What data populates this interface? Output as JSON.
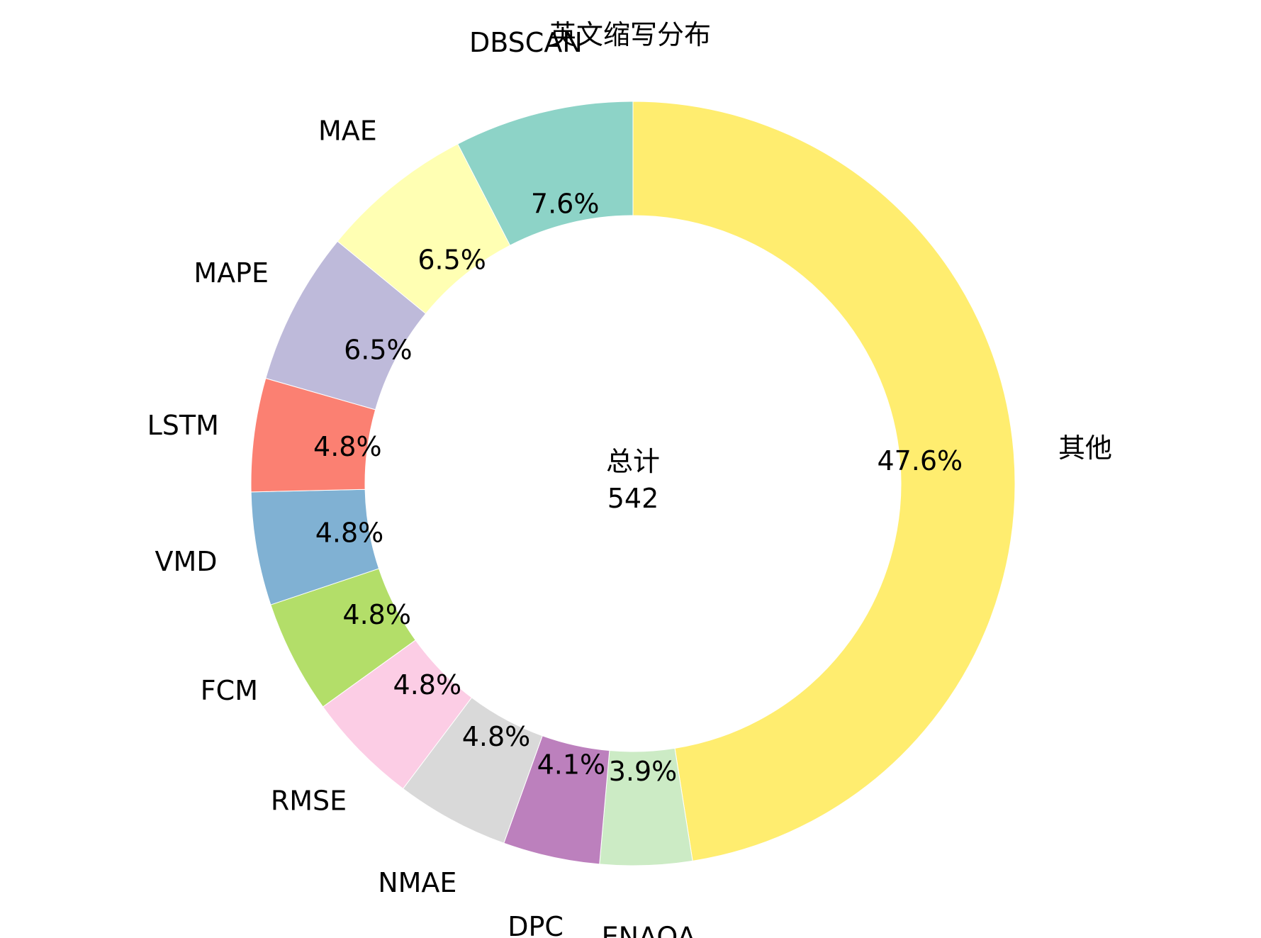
{
  "chart_data": {
    "type": "pie",
    "variant": "donut",
    "title": "英文缩写分布",
    "center_label": "总计",
    "center_value": "542",
    "start_angle": "top (12 o'clock)",
    "direction": "clockwise",
    "slices": [
      {
        "label": "其他",
        "percent": 47.6,
        "percent_text": "47.6%",
        "color": "#ffed6f"
      },
      {
        "label": "ENAOA",
        "percent": 3.9,
        "percent_text": "3.9%",
        "color": "#ccebc5"
      },
      {
        "label": "DPC",
        "percent": 4.1,
        "percent_text": "4.1%",
        "color": "#bc80bd"
      },
      {
        "label": "NMAE",
        "percent": 4.8,
        "percent_text": "4.8%",
        "color": "#d9d9d9"
      },
      {
        "label": "RMSE",
        "percent": 4.8,
        "percent_text": "4.8%",
        "color": "#fccde5"
      },
      {
        "label": "FCM",
        "percent": 4.8,
        "percent_text": "4.8%",
        "color": "#b3de69"
      },
      {
        "label": "VMD",
        "percent": 4.8,
        "percent_text": "4.8%",
        "color": "#80b1d3"
      },
      {
        "label": "LSTM",
        "percent": 4.8,
        "percent_text": "4.8%",
        "color": "#fb8072"
      },
      {
        "label": "MAPE",
        "percent": 6.5,
        "percent_text": "6.5%",
        "color": "#bebada"
      },
      {
        "label": "MAE",
        "percent": 6.5,
        "percent_text": "6.5%",
        "color": "#ffffb3"
      },
      {
        "label": "DBSCAN",
        "percent": 7.6,
        "percent_text": "7.6%",
        "color": "#8dd3c7"
      }
    ]
  }
}
